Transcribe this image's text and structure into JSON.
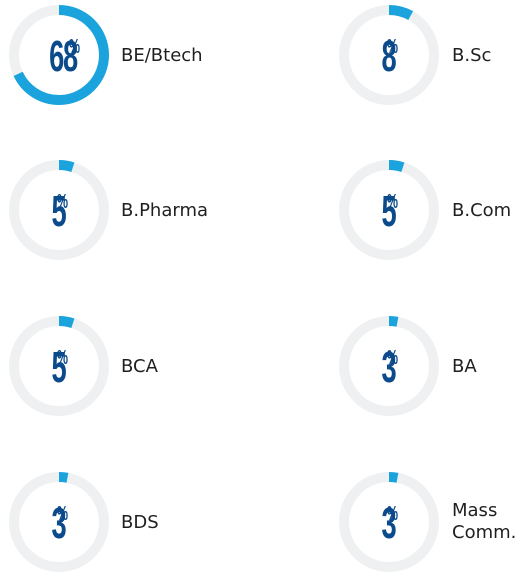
{
  "colors": {
    "track": "#eef0f1",
    "fill": "#1aa3dd",
    "value": "#0b4a8b",
    "label": "#1f1f1f"
  },
  "chart_data": {
    "type": "donut",
    "unit": "%",
    "items": [
      {
        "label": "BE/Btech",
        "value": 68
      },
      {
        "label": "B.Sc",
        "value": 8
      },
      {
        "label": "B.Pharma",
        "value": 5
      },
      {
        "label": "B.Com",
        "value": 5
      },
      {
        "label": "BCA",
        "value": 5
      },
      {
        "label": "BA",
        "value": 3
      },
      {
        "label": "BDS",
        "value": 3
      },
      {
        "label": "Mass\nComm.",
        "value": 3
      }
    ]
  }
}
